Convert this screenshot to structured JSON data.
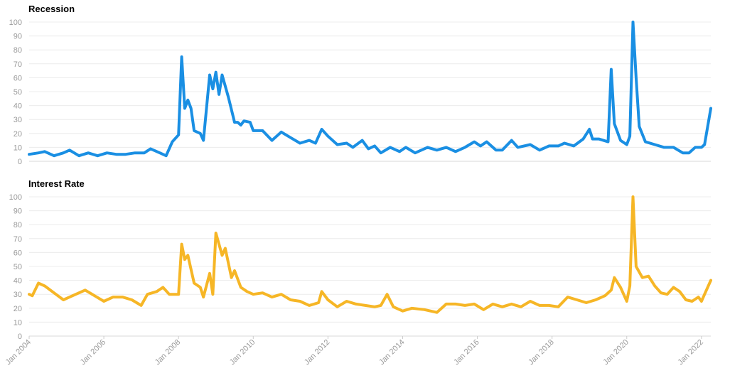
{
  "chart_data": [
    {
      "type": "line",
      "title": "Recession",
      "color": "#1a8fe3",
      "ylim": [
        0,
        100
      ],
      "yticks": [
        0,
        10,
        20,
        30,
        40,
        50,
        60,
        70,
        80,
        90,
        100
      ],
      "xlim": [
        "2004-01",
        "2022-04"
      ],
      "grid": true,
      "points": [
        [
          "2004-01",
          5
        ],
        [
          "2004-04",
          6
        ],
        [
          "2004-06",
          7
        ],
        [
          "2004-09",
          4
        ],
        [
          "2004-12",
          6
        ],
        [
          "2005-02",
          8
        ],
        [
          "2005-05",
          4
        ],
        [
          "2005-08",
          6
        ],
        [
          "2005-11",
          4
        ],
        [
          "2006-02",
          6
        ],
        [
          "2006-05",
          5
        ],
        [
          "2006-08",
          5
        ],
        [
          "2006-11",
          6
        ],
        [
          "2007-02",
          6
        ],
        [
          "2007-04",
          9
        ],
        [
          "2007-07",
          6
        ],
        [
          "2007-09",
          4
        ],
        [
          "2007-11",
          14
        ],
        [
          "2008-01",
          19
        ],
        [
          "2008-02",
          75
        ],
        [
          "2008-03",
          38
        ],
        [
          "2008-04",
          44
        ],
        [
          "2008-05",
          38
        ],
        [
          "2008-06",
          22
        ],
        [
          "2008-08",
          20
        ],
        [
          "2008-09",
          15
        ],
        [
          "2008-11",
          62
        ],
        [
          "2008-12",
          52
        ],
        [
          "2009-01",
          64
        ],
        [
          "2009-02",
          48
        ],
        [
          "2009-03",
          62
        ],
        [
          "2009-05",
          46
        ],
        [
          "2009-07",
          28
        ],
        [
          "2009-08",
          28
        ],
        [
          "2009-09",
          26
        ],
        [
          "2009-10",
          29
        ],
        [
          "2009-12",
          28
        ],
        [
          "2010-01",
          22
        ],
        [
          "2010-04",
          22
        ],
        [
          "2010-07",
          15
        ],
        [
          "2010-10",
          21
        ],
        [
          "2011-01",
          17
        ],
        [
          "2011-04",
          13
        ],
        [
          "2011-07",
          15
        ],
        [
          "2011-09",
          13
        ],
        [
          "2011-11",
          23
        ],
        [
          "2012-01",
          18
        ],
        [
          "2012-04",
          12
        ],
        [
          "2012-07",
          13
        ],
        [
          "2012-09",
          10
        ],
        [
          "2012-12",
          15
        ],
        [
          "2013-02",
          9
        ],
        [
          "2013-04",
          11
        ],
        [
          "2013-06",
          6
        ],
        [
          "2013-09",
          10
        ],
        [
          "2013-12",
          7
        ],
        [
          "2014-02",
          10
        ],
        [
          "2014-05",
          6
        ],
        [
          "2014-09",
          10
        ],
        [
          "2014-12",
          8
        ],
        [
          "2015-03",
          10
        ],
        [
          "2015-06",
          7
        ],
        [
          "2015-09",
          10
        ],
        [
          "2015-12",
          14
        ],
        [
          "2016-02",
          11
        ],
        [
          "2016-04",
          14
        ],
        [
          "2016-07",
          8
        ],
        [
          "2016-09",
          8
        ],
        [
          "2016-12",
          15
        ],
        [
          "2017-02",
          10
        ],
        [
          "2017-06",
          12
        ],
        [
          "2017-09",
          8
        ],
        [
          "2017-12",
          11
        ],
        [
          "2018-03",
          11
        ],
        [
          "2018-05",
          13
        ],
        [
          "2018-08",
          11
        ],
        [
          "2018-11",
          16
        ],
        [
          "2019-01",
          23
        ],
        [
          "2019-02",
          16
        ],
        [
          "2019-04",
          16
        ],
        [
          "2019-07",
          14
        ],
        [
          "2019-08",
          66
        ],
        [
          "2019-09",
          27
        ],
        [
          "2019-11",
          15
        ],
        [
          "2020-01",
          12
        ],
        [
          "2020-02",
          18
        ],
        [
          "2020-03",
          100
        ],
        [
          "2020-04",
          60
        ],
        [
          "2020-05",
          25
        ],
        [
          "2020-07",
          14
        ],
        [
          "2020-10",
          12
        ],
        [
          "2021-01",
          10
        ],
        [
          "2021-04",
          10
        ],
        [
          "2021-07",
          6
        ],
        [
          "2021-09",
          6
        ],
        [
          "2021-11",
          10
        ],
        [
          "2022-01",
          10
        ],
        [
          "2022-02",
          12
        ],
        [
          "2022-03",
          25
        ],
        [
          "2022-04",
          38
        ]
      ]
    },
    {
      "type": "line",
      "title": "Interest Rate",
      "color": "#f6b626",
      "ylim": [
        0,
        100
      ],
      "yticks": [
        0,
        10,
        20,
        30,
        40,
        50,
        60,
        70,
        80,
        90,
        100
      ],
      "xlim": [
        "2004-01",
        "2022-04"
      ],
      "xticks": [
        "Jan 2004",
        "Jan 2006",
        "Jan 2008",
        "Jan 2010",
        "Jan 2012",
        "Jan 2014",
        "Jan 2016",
        "Jan 2018",
        "Jan 2020",
        "Jan 2022"
      ],
      "grid": true,
      "points": [
        [
          "2004-01",
          30
        ],
        [
          "2004-02",
          29
        ],
        [
          "2004-04",
          38
        ],
        [
          "2004-06",
          36
        ],
        [
          "2004-09",
          31
        ],
        [
          "2004-12",
          26
        ],
        [
          "2005-02",
          28
        ],
        [
          "2005-05",
          31
        ],
        [
          "2005-07",
          33
        ],
        [
          "2005-10",
          29
        ],
        [
          "2006-01",
          25
        ],
        [
          "2006-04",
          28
        ],
        [
          "2006-07",
          28
        ],
        [
          "2006-10",
          26
        ],
        [
          "2007-01",
          22
        ],
        [
          "2007-03",
          30
        ],
        [
          "2007-06",
          32
        ],
        [
          "2007-08",
          35
        ],
        [
          "2007-10",
          30
        ],
        [
          "2008-01",
          30
        ],
        [
          "2008-02",
          66
        ],
        [
          "2008-03",
          55
        ],
        [
          "2008-04",
          58
        ],
        [
          "2008-06",
          38
        ],
        [
          "2008-08",
          35
        ],
        [
          "2008-09",
          28
        ],
        [
          "2008-11",
          45
        ],
        [
          "2008-12",
          30
        ],
        [
          "2009-01",
          74
        ],
        [
          "2009-03",
          58
        ],
        [
          "2009-04",
          63
        ],
        [
          "2009-06",
          42
        ],
        [
          "2009-07",
          47
        ],
        [
          "2009-09",
          35
        ],
        [
          "2009-11",
          32
        ],
        [
          "2010-01",
          30
        ],
        [
          "2010-04",
          31
        ],
        [
          "2010-07",
          28
        ],
        [
          "2010-10",
          30
        ],
        [
          "2011-01",
          26
        ],
        [
          "2011-04",
          25
        ],
        [
          "2011-07",
          22
        ],
        [
          "2011-10",
          24
        ],
        [
          "2011-11",
          32
        ],
        [
          "2012-01",
          26
        ],
        [
          "2012-04",
          21
        ],
        [
          "2012-07",
          25
        ],
        [
          "2012-10",
          23
        ],
        [
          "2013-01",
          22
        ],
        [
          "2013-04",
          21
        ],
        [
          "2013-06",
          22
        ],
        [
          "2013-08",
          30
        ],
        [
          "2013-10",
          21
        ],
        [
          "2014-01",
          18
        ],
        [
          "2014-04",
          20
        ],
        [
          "2014-08",
          19
        ],
        [
          "2014-12",
          17
        ],
        [
          "2015-03",
          23
        ],
        [
          "2015-06",
          23
        ],
        [
          "2015-09",
          22
        ],
        [
          "2015-12",
          23
        ],
        [
          "2016-03",
          19
        ],
        [
          "2016-06",
          23
        ],
        [
          "2016-09",
          21
        ],
        [
          "2016-12",
          23
        ],
        [
          "2017-03",
          21
        ],
        [
          "2017-06",
          25
        ],
        [
          "2017-09",
          22
        ],
        [
          "2017-12",
          22
        ],
        [
          "2018-03",
          21
        ],
        [
          "2018-06",
          28
        ],
        [
          "2018-09",
          26
        ],
        [
          "2018-12",
          24
        ],
        [
          "2019-03",
          26
        ],
        [
          "2019-06",
          29
        ],
        [
          "2019-08",
          33
        ],
        [
          "2019-09",
          42
        ],
        [
          "2019-11",
          35
        ],
        [
          "2020-01",
          25
        ],
        [
          "2020-02",
          36
        ],
        [
          "2020-03",
          100
        ],
        [
          "2020-04",
          50
        ],
        [
          "2020-06",
          42
        ],
        [
          "2020-08",
          43
        ],
        [
          "2020-10",
          36
        ],
        [
          "2020-12",
          31
        ],
        [
          "2021-02",
          30
        ],
        [
          "2021-04",
          35
        ],
        [
          "2021-06",
          32
        ],
        [
          "2021-08",
          26
        ],
        [
          "2021-10",
          25
        ],
        [
          "2021-12",
          28
        ],
        [
          "2022-01",
          25
        ],
        [
          "2022-02",
          30
        ],
        [
          "2022-04",
          40
        ]
      ]
    }
  ]
}
